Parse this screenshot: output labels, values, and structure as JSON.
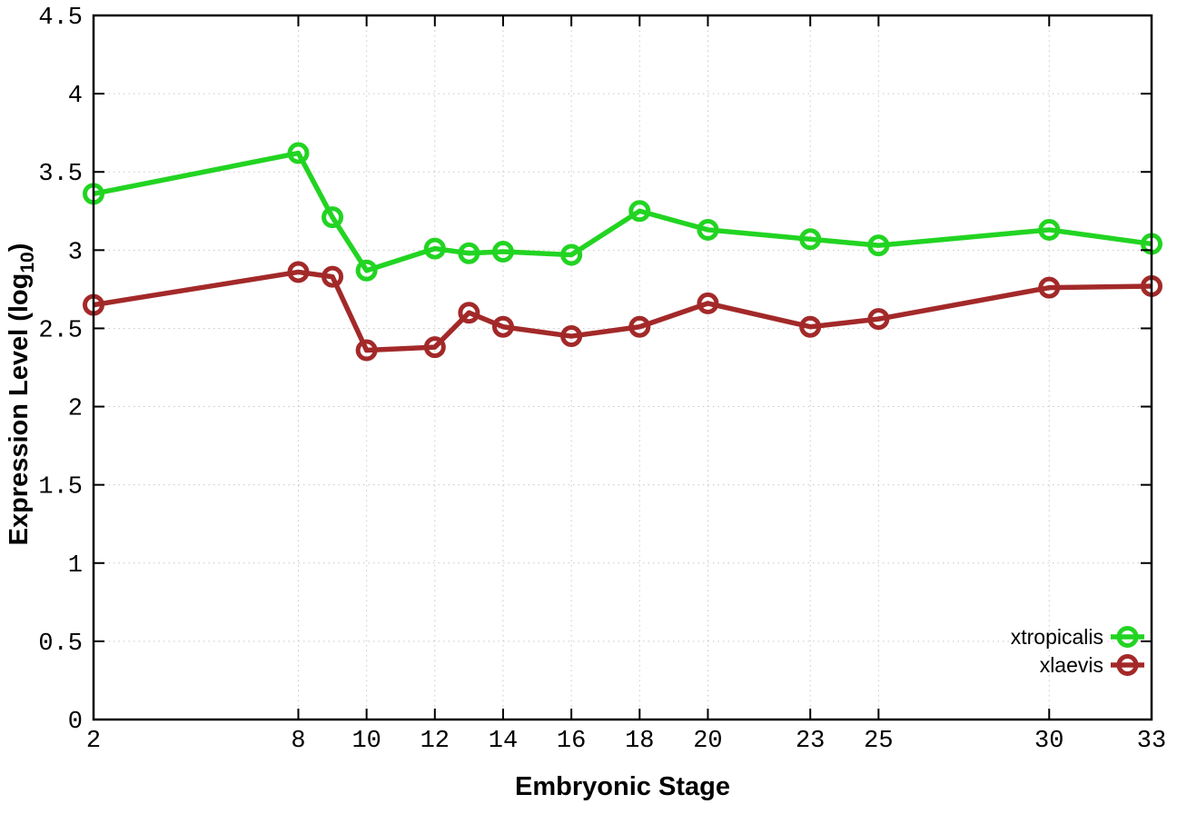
{
  "chart_data": {
    "type": "line",
    "xlabel": "Embryonic Stage",
    "ylabel": "Expression Level (log10)",
    "ylabel_parts": {
      "pre": "Expression Level (log",
      "sub": "10",
      "post": ")"
    },
    "xlim": [
      2,
      33
    ],
    "ylim": [
      0,
      4.5
    ],
    "grid": true,
    "legend_position": "inside bottom-right",
    "x_ticks": [
      2,
      8,
      10,
      12,
      14,
      16,
      18,
      20,
      23,
      25,
      30,
      33
    ],
    "x_tick_labels": [
      "2",
      "8",
      "10",
      "12",
      "14",
      "16",
      "18",
      "20",
      "23",
      "25",
      "30",
      "33"
    ],
    "y_ticks": [
      0,
      0.5,
      1,
      1.5,
      2,
      2.5,
      3,
      3.5,
      4,
      4.5
    ],
    "y_tick_labels": [
      "0",
      "0.5",
      "1",
      "1.5",
      "2",
      "2.5",
      "3",
      "3.5",
      "4",
      "4.5"
    ],
    "x": [
      2,
      8,
      9,
      10,
      12,
      13,
      14,
      16,
      18,
      20,
      23,
      25,
      30,
      33
    ],
    "series": [
      {
        "name": "xtropicalis",
        "color": "#22d422",
        "marker": "open-circle",
        "values": [
          3.36,
          3.62,
          3.21,
          2.87,
          3.01,
          2.98,
          2.99,
          2.97,
          3.25,
          3.13,
          3.07,
          3.03,
          3.13,
          3.04
        ]
      },
      {
        "name": "xlaevis",
        "color": "#a32929",
        "marker": "open-circle",
        "values": [
          2.65,
          2.86,
          2.83,
          2.36,
          2.38,
          2.6,
          2.51,
          2.45,
          2.51,
          2.66,
          2.51,
          2.56,
          2.76,
          2.77
        ]
      }
    ],
    "colors": {
      "grid": "#c8c8c8",
      "axis": "#000000",
      "tick_text": "#000000"
    }
  }
}
